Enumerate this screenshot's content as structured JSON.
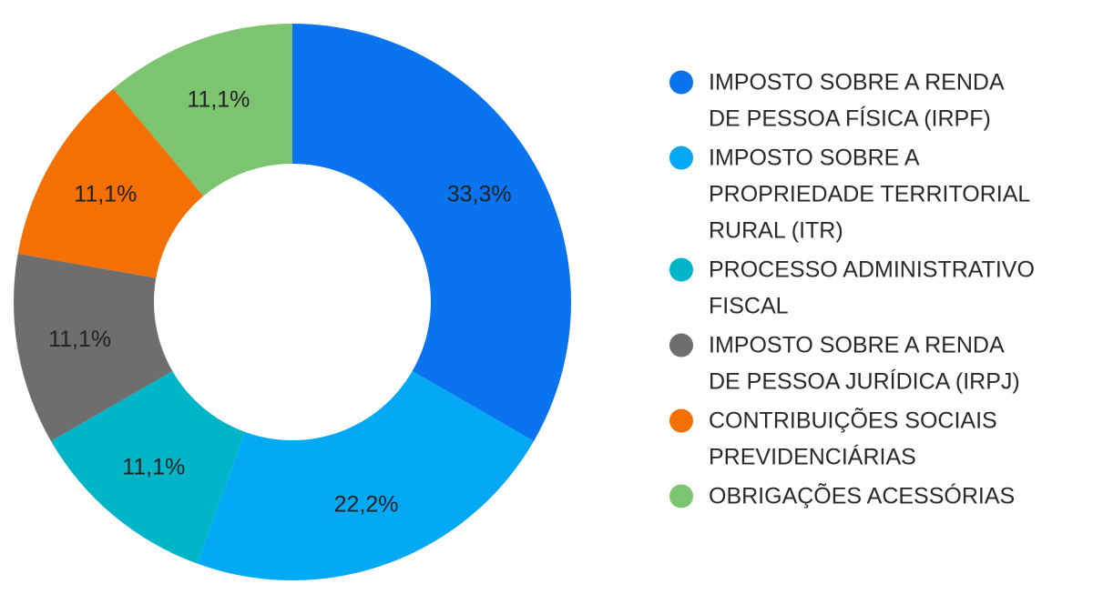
{
  "chart_data": {
    "type": "pie",
    "variant": "donut",
    "title": "",
    "legend_position": "right",
    "start_angle_deg": 0,
    "direction": "clockwise",
    "slices": [
      {
        "label": "IMPOSTO SOBRE A RENDA DE PESSOA FÍSICA (IRPF)",
        "legend_lines": [
          "IMPOSTO SOBRE A RENDA",
          "DE PESSOA FÍSICA (IRPF)"
        ],
        "value": 33.3,
        "display": "33,3%",
        "color": "#0a73ef"
      },
      {
        "label": "IMPOSTO SOBRE A PROPRIEDADE TERRITORIAL RURAL (ITR)",
        "legend_lines": [
          "IMPOSTO SOBRE A",
          "PROPRIEDADE TERRITORIAL",
          "RURAL (ITR)"
        ],
        "value": 22.2,
        "display": "22,2%",
        "color": "#03a9f4"
      },
      {
        "label": "PROCESSO ADMINISTRATIVO FISCAL",
        "legend_lines": [
          "PROCESSO ADMINISTRATIVO",
          "FISCAL"
        ],
        "value": 11.1,
        "display": "11,1%",
        "color": "#00b5c7"
      },
      {
        "label": "IMPOSTO SOBRE A RENDA DE PESSOA JURÍDICA (IRPJ)",
        "legend_lines": [
          "IMPOSTO SOBRE A RENDA",
          "DE PESSOA JURÍDICA (IRPJ)"
        ],
        "value": 11.1,
        "display": "11,1%",
        "color": "#6e6e6e"
      },
      {
        "label": "CONTRIBUIÇÕES SOCIAIS PREVIDENCIÁRIAS",
        "legend_lines": [
          "CONTRIBUIÇÕES SOCIAIS",
          "PREVIDENCIÁRIAS"
        ],
        "value": 11.1,
        "display": "11,1%",
        "color": "#f57002"
      },
      {
        "label": "OBRIGAÇÕES ACESSÓRIAS",
        "legend_lines": [
          "OBRIGAÇÕES ACESSÓRIAS"
        ],
        "value": 11.1,
        "display": "11,1%",
        "color": "#7cc46f"
      }
    ]
  }
}
